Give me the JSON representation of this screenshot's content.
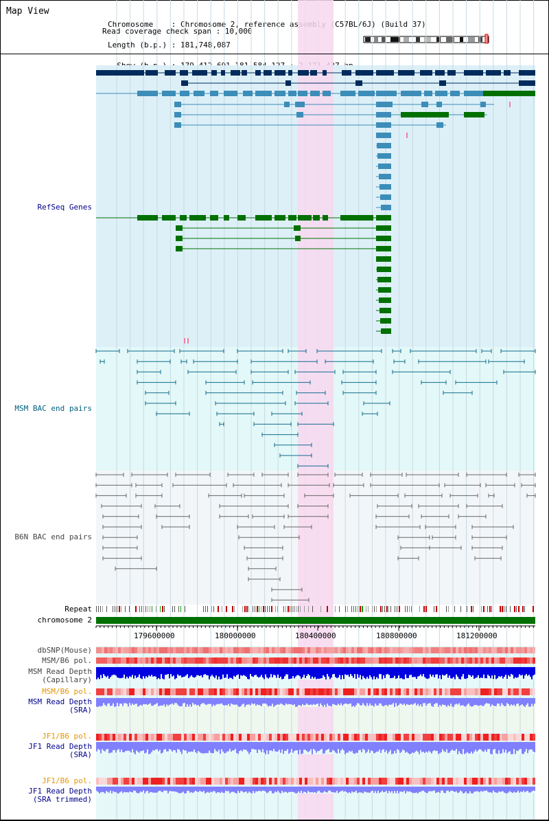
{
  "view": {
    "title": "Map View",
    "info_lines": [
      "Chromosome    : Chromosome 2, reference assembly (C57BL/6J) (Build 37)",
      "Length (b.p.) : 181,748,087",
      "  Show (b.p.) : 179,412,691-181,584,127 : 2,171,437 bp",
      "Read coverage check span : 10,000"
    ]
  },
  "tracks": {
    "refseq": "RefSeq Genes",
    "msm_bac": "MSM BAC end pairs",
    "b6n_bac": "B6N BAC end pairs",
    "repeat": "Repeat",
    "chromosome": "chromosome 2",
    "dbsnp": "dbSNP(Mouse)",
    "msm_b6_pol_1": "MSM/B6 pol.",
    "msm_depth_cap": "MSM Read Depth",
    "msm_depth_cap_sub": "(Capillary)",
    "msm_b6_pol_2": "MSM/B6 pol.",
    "msm_depth_sra": "MSM Read Depth",
    "msm_depth_sra_sub": "(SRA)",
    "jf1_b6_pol_1": "JF1/B6 pol.",
    "jf1_depth_sra": "JF1 Read Depth",
    "jf1_depth_sra_sub": "(SRA)",
    "jf1_b6_pol_2": "JF1/B6 pol.",
    "jf1_depth_trim": "JF1 Read Depth",
    "jf1_depth_trim_sub": "(SRA trimmed)"
  },
  "axis": {
    "ticks": [
      "179600000",
      "180000000",
      "180400000",
      "180800000",
      "181200000"
    ]
  },
  "colors": {
    "refseq_bg": "#ddf0f8",
    "msm_bg": "#e3f8f8",
    "b6n_bg": "#f3f6f8",
    "highlight": "#f8d8f0",
    "navy": "#002b5c",
    "steel": "#3c8db8",
    "green": "#007000",
    "teal": "#106a8c",
    "gray": "#666666",
    "blue_depth": "#0000e0",
    "light_blue_depth": "#8080ff"
  }
}
